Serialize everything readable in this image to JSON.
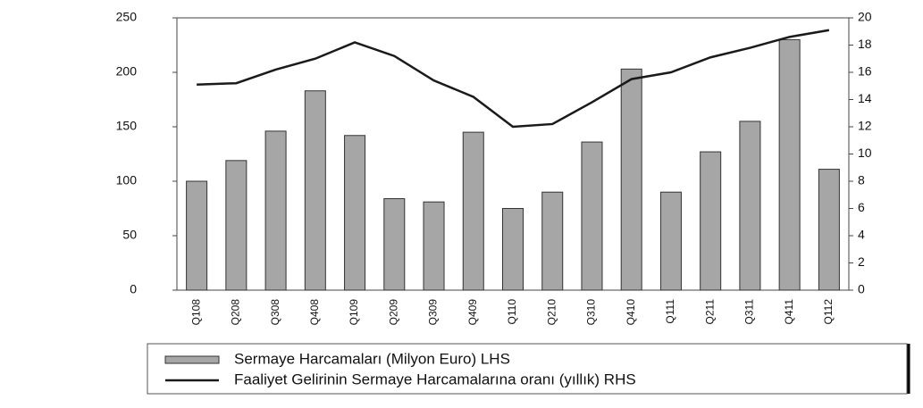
{
  "chart_data": {
    "type": "bar",
    "categories": [
      "Q108",
      "Q208",
      "Q308",
      "Q408",
      "Q109",
      "Q209",
      "Q309",
      "Q409",
      "Q110",
      "Q210",
      "Q310",
      "Q410",
      "Q111",
      "Q211",
      "Q311",
      "Q411",
      "Q112"
    ],
    "series": [
      {
        "name": "Sermaye Harcamaları (Milyon Euro) LHS",
        "type": "bar",
        "color": "#a6a6a6",
        "values": [
          100,
          119,
          146,
          183,
          142,
          84,
          81,
          145,
          75,
          90,
          136,
          203,
          90,
          127,
          155,
          230,
          111
        ]
      },
      {
        "name": "Faaliyet Gelirinin Sermaye Harcamalarına oranı (yıllık) RHS",
        "type": "line",
        "axis": "y2",
        "color": "#1a1a1a",
        "values": [
          15.1,
          15.2,
          16.2,
          17,
          18.2,
          17.2,
          15.4,
          14.2,
          12,
          12.2,
          13.8,
          15.5,
          16,
          17.1,
          17.8,
          18.6,
          19.1
        ]
      }
    ],
    "ylim": [
      0,
      250
    ],
    "yticks": [
      0,
      50,
      100,
      150,
      200,
      250
    ],
    "y2lim": [
      0,
      20
    ],
    "y2ticks": [
      0,
      2,
      4,
      6,
      8,
      10,
      12,
      14,
      16,
      18,
      20
    ]
  }
}
